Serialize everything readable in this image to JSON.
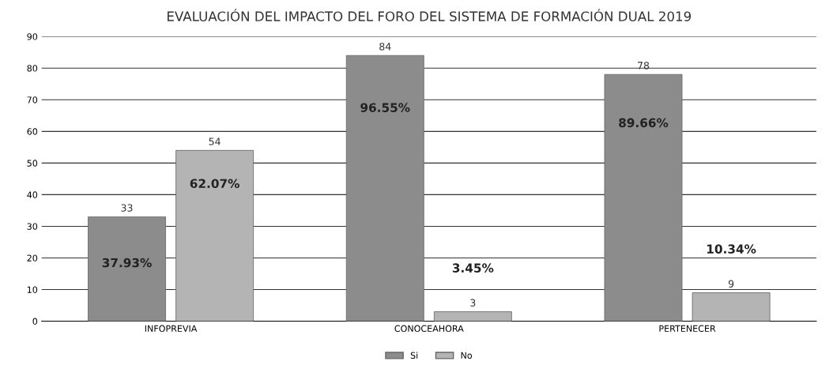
{
  "chart_data": {
    "type": "bar",
    "title": "EVALUACIÓN DEL IMPACTO DEL FORO DEL SISTEMA DE FORMACIÓN DUAL 2019",
    "categories": [
      "INFOPREVIA",
      "CONOCEAHORA",
      "PERTENECER"
    ],
    "series": [
      {
        "name": "Si",
        "color": "#8c8c8c",
        "values": [
          33,
          84,
          78
        ],
        "value_labels": [
          "33",
          "84",
          "78"
        ]
      },
      {
        "name": "No",
        "color": "#b4b4b4",
        "values": [
          54,
          3,
          9
        ],
        "value_labels": [
          "54",
          "3",
          "9"
        ]
      }
    ],
    "annotations": [
      "37.93%",
      "62.07%",
      "96.55%",
      "3.45%",
      "89.66%",
      "10.34%"
    ],
    "ylim": [
      0,
      90
    ],
    "yticks": [
      0,
      10,
      20,
      30,
      40,
      50,
      60,
      70,
      80,
      90
    ],
    "grid": "y",
    "legend": "bottom"
  }
}
